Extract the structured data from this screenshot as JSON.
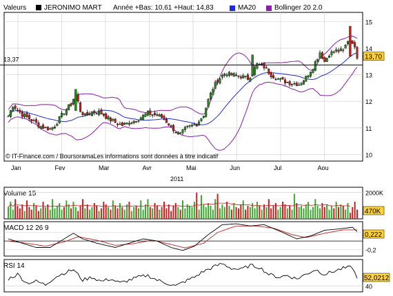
{
  "header": {
    "label": "Valeurs",
    "name": "JERONIMO MART",
    "range": "Année +Bas: 10,61 +Haut: 14,83",
    "ma_legend": "MA20",
    "bb_legend": "Bollinger 20 2.0"
  },
  "colors": {
    "up": "#2a8a1e",
    "down": "#c81e1e",
    "ma": "#1e2bd8",
    "bollinger": "#8a1ea8",
    "grid": "#cccccc",
    "badge": "#ffd23a",
    "volume_up": "#3aa82a",
    "volume_down": "#c81e1e",
    "macd_signal": "#c81e1e"
  },
  "chart_data": [
    {
      "type": "candlestick",
      "title": "JERONIMO MART",
      "x_tick_labels": [
        "Jan",
        "Fev",
        "Mar",
        "Avr",
        "Mai",
        "Jun",
        "Jul",
        "Aou"
      ],
      "year_label": "2011",
      "y_tick_labels": [
        "10",
        "11",
        "12",
        "13",
        "14",
        "15"
      ],
      "ylim": [
        9.75,
        15.35
      ],
      "reference_line": 13.37,
      "reference_label": "13,37",
      "last_value": 13.7,
      "last_label": "13,70",
      "legend": [
        "MA20",
        "Bollinger 20 2.0"
      ],
      "footer": "© IT-Finance.com / BoursoramaLes informations sont données à titre indicatif",
      "close_anchors": [
        [
          0,
          11.45
        ],
        [
          2,
          11.85
        ],
        [
          6,
          11.5
        ],
        [
          10,
          11.3
        ],
        [
          14,
          11.05
        ],
        [
          18,
          10.95
        ],
        [
          20,
          11.1
        ],
        [
          24,
          11.6
        ],
        [
          27,
          11.9
        ],
        [
          29,
          12.3
        ],
        [
          31,
          11.65
        ],
        [
          33,
          11.45
        ],
        [
          36,
          11.6
        ],
        [
          39,
          11.6
        ],
        [
          41,
          11.5
        ],
        [
          43,
          11.35
        ],
        [
          46,
          11.2
        ],
        [
          49,
          11.1
        ],
        [
          52,
          11.2
        ],
        [
          56,
          11.35
        ],
        [
          60,
          11.55
        ],
        [
          63,
          11.5
        ],
        [
          66,
          11.4
        ],
        [
          69,
          11.15
        ],
        [
          72,
          10.85
        ],
        [
          74,
          10.75
        ],
        [
          76,
          10.95
        ],
        [
          78,
          11.05
        ],
        [
          81,
          11.15
        ],
        [
          84,
          11.5
        ],
        [
          86,
          12.05
        ],
        [
          88,
          12.5
        ],
        [
          90,
          12.8
        ],
        [
          93,
          13.05
        ],
        [
          96,
          13.0
        ],
        [
          100,
          12.95
        ],
        [
          103,
          12.85
        ],
        [
          105,
          13.1
        ],
        [
          107,
          13.4
        ],
        [
          110,
          13.3
        ],
        [
          113,
          13.0
        ],
        [
          117,
          12.8
        ],
        [
          121,
          12.7
        ],
        [
          125,
          12.65
        ],
        [
          128,
          12.9
        ],
        [
          131,
          13.3
        ],
        [
          134,
          13.85
        ],
        [
          136,
          13.5
        ],
        [
          138,
          13.8
        ],
        [
          141,
          13.9
        ],
        [
          144,
          13.9
        ],
        [
          146,
          14.3
        ],
        [
          148,
          14.25
        ],
        [
          150,
          13.7
        ]
      ],
      "highlight_bars": [
        [
          29,
          11.65,
          12.45
        ],
        [
          105,
          12.95,
          13.75
        ],
        [
          147,
          13.7,
          14.83
        ]
      ],
      "volume": {
        "title": "Volume 15",
        "tick_label": "2000K",
        "last_label": "470K",
        "ylim": [
          0,
          2400
        ],
        "values_k": [
          900,
          1300,
          700,
          1500,
          1000,
          800,
          1100,
          600,
          1400,
          900,
          700,
          1200,
          1000,
          600,
          800,
          1300,
          900,
          1100,
          700,
          1500,
          800,
          1000,
          1200,
          700,
          900,
          1400,
          1100,
          800,
          1300,
          900,
          600,
          1000,
          1500,
          800,
          1100,
          700,
          900,
          1200,
          1000,
          600,
          800,
          1300,
          1100,
          900,
          700,
          1400,
          1000,
          800,
          1200,
          900,
          700,
          1100,
          1300,
          600,
          900,
          1000,
          800,
          1400,
          700,
          1100,
          1500,
          900,
          800,
          1200,
          1000,
          700,
          900,
          1300,
          800,
          1100,
          600,
          1000,
          1200,
          900,
          700,
          1400,
          800,
          1100,
          1000,
          900,
          1300,
          2000,
          700,
          1800,
          1100,
          900,
          1200,
          1000,
          700,
          1500,
          1900,
          800,
          1100,
          900,
          1300,
          1000,
          700,
          1200,
          900,
          800,
          1100,
          1400,
          700,
          1000,
          900,
          1200,
          800,
          1300,
          1000,
          700,
          1100,
          900,
          1500,
          800,
          1000,
          1200,
          700,
          900,
          1300,
          1100,
          800,
          1000,
          700,
          1900,
          1200,
          900,
          1000,
          800,
          1100,
          1300,
          700,
          900,
          1500,
          1000,
          800,
          1200,
          900,
          1100,
          700,
          1000,
          800,
          1300,
          900,
          1100,
          1000,
          700,
          1200,
          470
        ]
      },
      "macd": {
        "title": "MACD 12 26 9",
        "tick_labels": [
          "0,2",
          "-0,2"
        ],
        "last_label": "0,222",
        "ylim": [
          -0.35,
          0.45
        ],
        "macd_anchors": [
          [
            0,
            0.05
          ],
          [
            6,
            -0.05
          ],
          [
            12,
            -0.15
          ],
          [
            18,
            -0.15
          ],
          [
            24,
            0.05
          ],
          [
            28,
            0.18
          ],
          [
            32,
            0.05
          ],
          [
            38,
            -0.05
          ],
          [
            46,
            -0.15
          ],
          [
            52,
            -0.05
          ],
          [
            58,
            0.05
          ],
          [
            64,
            0.0
          ],
          [
            70,
            -0.15
          ],
          [
            75,
            -0.22
          ],
          [
            80,
            -0.12
          ],
          [
            86,
            0.15
          ],
          [
            92,
            0.38
          ],
          [
            98,
            0.4
          ],
          [
            104,
            0.35
          ],
          [
            110,
            0.38
          ],
          [
            118,
            0.2
          ],
          [
            124,
            0.05
          ],
          [
            130,
            0.12
          ],
          [
            136,
            0.25
          ],
          [
            142,
            0.28
          ],
          [
            148,
            0.32
          ],
          [
            150,
            0.22
          ]
        ],
        "signal_anchors": [
          [
            0,
            0.0
          ],
          [
            8,
            -0.05
          ],
          [
            16,
            -0.12
          ],
          [
            24,
            -0.02
          ],
          [
            30,
            0.1
          ],
          [
            38,
            0.02
          ],
          [
            46,
            -0.1
          ],
          [
            54,
            -0.06
          ],
          [
            62,
            0.02
          ],
          [
            70,
            -0.08
          ],
          [
            76,
            -0.16
          ],
          [
            84,
            -0.05
          ],
          [
            90,
            0.2
          ],
          [
            98,
            0.35
          ],
          [
            106,
            0.35
          ],
          [
            114,
            0.3
          ],
          [
            122,
            0.15
          ],
          [
            128,
            0.08
          ],
          [
            136,
            0.18
          ],
          [
            144,
            0.26
          ],
          [
            150,
            0.26
          ]
        ]
      },
      "rsi": {
        "title": "RSI 14",
        "tick_label": "40",
        "last_label": "52,0212",
        "ylim": [
          30,
          85
        ],
        "anchors": [
          [
            0,
            52
          ],
          [
            4,
            60
          ],
          [
            8,
            45
          ],
          [
            12,
            48
          ],
          [
            16,
            42
          ],
          [
            20,
            55
          ],
          [
            24,
            62
          ],
          [
            28,
            68
          ],
          [
            32,
            50
          ],
          [
            36,
            55
          ],
          [
            40,
            48
          ],
          [
            44,
            52
          ],
          [
            48,
            45
          ],
          [
            52,
            50
          ],
          [
            56,
            55
          ],
          [
            60,
            58
          ],
          [
            64,
            50
          ],
          [
            68,
            45
          ],
          [
            72,
            40
          ],
          [
            76,
            48
          ],
          [
            80,
            55
          ],
          [
            84,
            65
          ],
          [
            88,
            72
          ],
          [
            92,
            78
          ],
          [
            96,
            70
          ],
          [
            100,
            68
          ],
          [
            104,
            75
          ],
          [
            108,
            72
          ],
          [
            112,
            60
          ],
          [
            116,
            55
          ],
          [
            120,
            58
          ],
          [
            124,
            52
          ],
          [
            128,
            60
          ],
          [
            132,
            68
          ],
          [
            136,
            60
          ],
          [
            140,
            65
          ],
          [
            144,
            70
          ],
          [
            148,
            72
          ],
          [
            150,
            52
          ]
        ]
      }
    }
  ]
}
